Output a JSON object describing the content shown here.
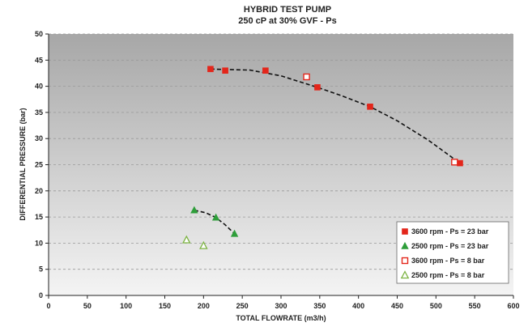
{
  "chart_data": {
    "type": "scatter",
    "title": "HYBRID TEST PUMP",
    "subtitle": "250 cP at 30% GVF - Ps",
    "xlabel": "TOTAL FLOWRATE (m3/h)",
    "ylabel": "DIFFERENTIAL PRESSURE (bar)",
    "xlim": [
      0,
      600
    ],
    "ylim": [
      0,
      50
    ],
    "xticks": [
      "0",
      "50",
      "100",
      "150",
      "200",
      "250",
      "300",
      "350",
      "400",
      "450",
      "500",
      "550",
      "600"
    ],
    "yticks": [
      "0",
      "5",
      "10",
      "15",
      "20",
      "25",
      "30",
      "35",
      "40",
      "45",
      "50"
    ],
    "grid": true,
    "legend_position": "bottom-right",
    "series": [
      {
        "name": "3600 rpm - Ps = 23 bar",
        "marker": "square-filled",
        "color": "#e3261b",
        "points": [
          [
            209,
            43.3
          ],
          [
            228,
            43.0
          ],
          [
            280,
            43.0
          ],
          [
            347,
            39.8
          ],
          [
            415,
            36.1
          ],
          [
            531,
            25.3
          ]
        ]
      },
      {
        "name": "2500 rpm - Ps = 23 bar",
        "marker": "triangle-filled",
        "color": "#2e9e3a",
        "points": [
          [
            188,
            16.3
          ],
          [
            216,
            14.9
          ],
          [
            240,
            11.8
          ]
        ]
      },
      {
        "name": "3600 rpm - Ps = 8 bar",
        "marker": "square-open",
        "color": "#e3261b",
        "points": [
          [
            333,
            41.8
          ],
          [
            524,
            25.5
          ]
        ]
      },
      {
        "name": "2500 rpm - Ps = 8 bar",
        "marker": "triangle-open",
        "color": "#7cb342",
        "points": [
          [
            178,
            10.6
          ],
          [
            200,
            9.5
          ]
        ]
      }
    ],
    "trendlines": [
      {
        "series": "3600 rpm - Ps = 23 bar",
        "style": "dashed",
        "color": "#111111",
        "points": [
          [
            209,
            43.3
          ],
          [
            260,
            43.1
          ],
          [
            300,
            42.0
          ],
          [
            347,
            39.8
          ],
          [
            380,
            38.1
          ],
          [
            415,
            36.1
          ],
          [
            450,
            33.4
          ],
          [
            490,
            29.7
          ],
          [
            531,
            25.3
          ]
        ]
      },
      {
        "series": "2500 rpm - Ps = 23 bar",
        "style": "dashed",
        "color": "#111111",
        "points": [
          [
            188,
            16.3
          ],
          [
            203,
            15.8
          ],
          [
            216,
            14.9
          ],
          [
            228,
            13.5
          ],
          [
            240,
            11.8
          ]
        ]
      }
    ]
  },
  "colors": {
    "page_background": "#ffffff",
    "plot_background_top": "#a7a7a7",
    "plot_background_bottom": "#f4f4f4",
    "grid": "#9a9a9a",
    "text": "#222222"
  }
}
